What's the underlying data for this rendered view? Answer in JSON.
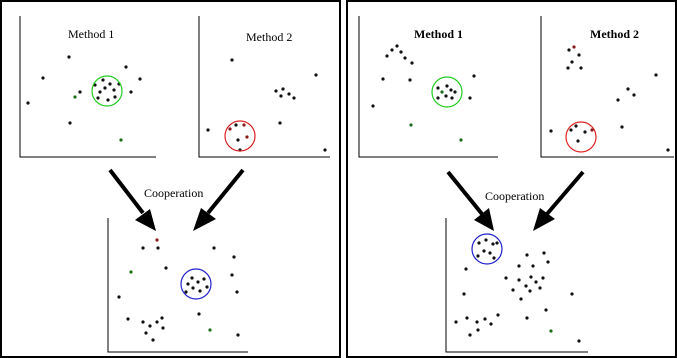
{
  "labels": {
    "left_method1": "Method 1",
    "left_method2": "Method 2",
    "left_cooperation": "Cooperation",
    "right_method1": "Method 1",
    "right_method2": "Method 2",
    "right_cooperation": "Cooperation"
  },
  "colors": {
    "method1_circle": "#22cc22",
    "method2_circle": "#dd2222",
    "cooperation_circle": "#2222cc",
    "point_dark": "#111111",
    "point_green": "#1a6e1a",
    "point_red": "#8a1a1a"
  }
}
